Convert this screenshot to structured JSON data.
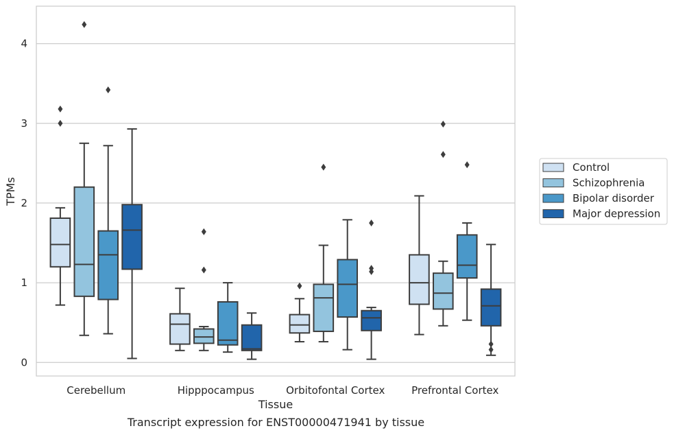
{
  "chart_data": {
    "type": "boxplot",
    "xlabel": "Tissue",
    "ylabel": "TPMs",
    "caption": "Transcript expression for ENST00000471941 by tissue",
    "ylim": [
      -0.17,
      4.47
    ],
    "yticks": [
      0,
      1,
      2,
      3,
      4
    ],
    "grid": true,
    "legend_position": "right",
    "categories": [
      "Cerebellum",
      "Hipppocampus",
      "Orbitofontal Cortex",
      "Prefrontal Cortex"
    ],
    "series": [
      {
        "name": "Control",
        "color": "#cfe1f2",
        "boxes": [
          {
            "whislo": 0.72,
            "q1": 1.2,
            "med": 1.48,
            "q3": 1.81,
            "whishi": 1.94,
            "fliers": [
              3.0,
              3.18
            ]
          },
          {
            "whislo": 0.15,
            "q1": 0.23,
            "med": 0.48,
            "q3": 0.61,
            "whishi": 0.93,
            "fliers": []
          },
          {
            "whislo": 0.26,
            "q1": 0.37,
            "med": 0.47,
            "q3": 0.6,
            "whishi": 0.8,
            "fliers": [
              0.96
            ]
          },
          {
            "whislo": 0.35,
            "q1": 0.73,
            "med": 1.0,
            "q3": 1.35,
            "whishi": 2.09,
            "fliers": []
          }
        ]
      },
      {
        "name": "Schizophrenia",
        "color": "#93c4de",
        "boxes": [
          {
            "whislo": 0.34,
            "q1": 0.83,
            "med": 1.23,
            "q3": 2.2,
            "whishi": 2.75,
            "fliers": [
              4.24
            ]
          },
          {
            "whislo": 0.15,
            "q1": 0.24,
            "med": 0.32,
            "q3": 0.42,
            "whishi": 0.45,
            "fliers": [
              1.16,
              1.64
            ]
          },
          {
            "whislo": 0.26,
            "q1": 0.39,
            "med": 0.81,
            "q3": 0.98,
            "whishi": 1.47,
            "fliers": [
              2.45
            ]
          },
          {
            "whislo": 0.46,
            "q1": 0.67,
            "med": 0.87,
            "q3": 1.12,
            "whishi": 1.27,
            "fliers": [
              2.61,
              2.99
            ]
          }
        ]
      },
      {
        "name": "Bipolar disorder",
        "color": "#4a98c9",
        "boxes": [
          {
            "whislo": 0.36,
            "q1": 0.79,
            "med": 1.35,
            "q3": 1.65,
            "whishi": 2.72,
            "fliers": [
              3.42
            ]
          },
          {
            "whislo": 0.13,
            "q1": 0.22,
            "med": 0.28,
            "q3": 0.76,
            "whishi": 1.0,
            "fliers": []
          },
          {
            "whislo": 0.16,
            "q1": 0.57,
            "med": 0.98,
            "q3": 1.29,
            "whishi": 1.79,
            "fliers": []
          },
          {
            "whislo": 0.53,
            "q1": 1.06,
            "med": 1.22,
            "q3": 1.6,
            "whishi": 1.75,
            "fliers": [
              2.48
            ]
          }
        ]
      },
      {
        "name": "Major depression",
        "color": "#2165ab",
        "boxes": [
          {
            "whislo": 0.05,
            "q1": 1.17,
            "med": 1.66,
            "q3": 1.98,
            "whishi": 2.93,
            "fliers": []
          },
          {
            "whislo": 0.04,
            "q1": 0.15,
            "med": 0.17,
            "q3": 0.47,
            "whishi": 0.62,
            "fliers": []
          },
          {
            "whislo": 0.04,
            "q1": 0.4,
            "med": 0.56,
            "q3": 0.65,
            "whishi": 0.69,
            "fliers": [
              1.14,
              1.18,
              1.75
            ]
          },
          {
            "whislo": 0.09,
            "q1": 0.46,
            "med": 0.71,
            "q3": 0.92,
            "whishi": 1.48,
            "fliers": [
              0.16,
              0.23
            ]
          }
        ]
      }
    ]
  }
}
